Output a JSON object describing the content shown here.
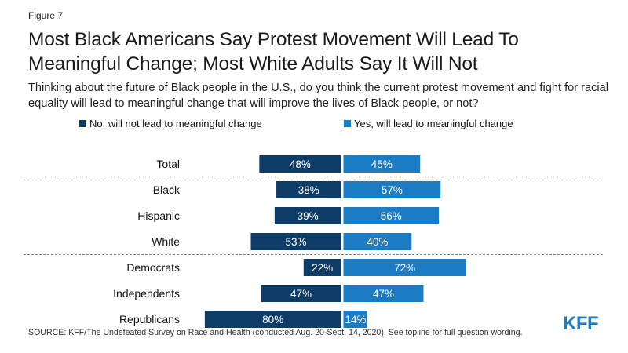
{
  "figure_label": "Figure 7",
  "title": "Most Black Americans Say Protest Movement Will Lead To Meaningful Change; Most White Adults Say It Will Not",
  "subtitle": "Thinking about the future of Black people in the U.S., do you think the current protest movement and fight for racial equality will lead to meaningful change that will improve the lives of Black people, or not?",
  "source": "SOURCE: KFF/The Undefeated Survey on Race and Health (conducted Aug. 20-Sept. 14, 2020). See topline for full question wording.",
  "logo_text": "KFF",
  "colors": {
    "no": "#0d3d66",
    "yes": "#1b7cc4",
    "divider": "#888888"
  },
  "chart_data": {
    "type": "bar",
    "orientation": "horizontal-diverging",
    "categories": [
      "Total",
      "Black",
      "Hispanic",
      "White",
      "Democrats",
      "Independents",
      "Republicans"
    ],
    "series": [
      {
        "name": "No, will not lead to meaningful change",
        "values": [
          48,
          38,
          39,
          53,
          22,
          47,
          80
        ],
        "labels": [
          "48%",
          "38%",
          "39%",
          "53%",
          "22%",
          "47%",
          "80%"
        ]
      },
      {
        "name": "Yes, will lead to meaningful change",
        "values": [
          45,
          57,
          56,
          40,
          72,
          47,
          14
        ],
        "labels": [
          "45%",
          "57%",
          "56%",
          "40%",
          "72%",
          "47%",
          "14%"
        ]
      }
    ],
    "dividers_after": [
      "Total",
      "White"
    ],
    "legend_position": "top"
  }
}
